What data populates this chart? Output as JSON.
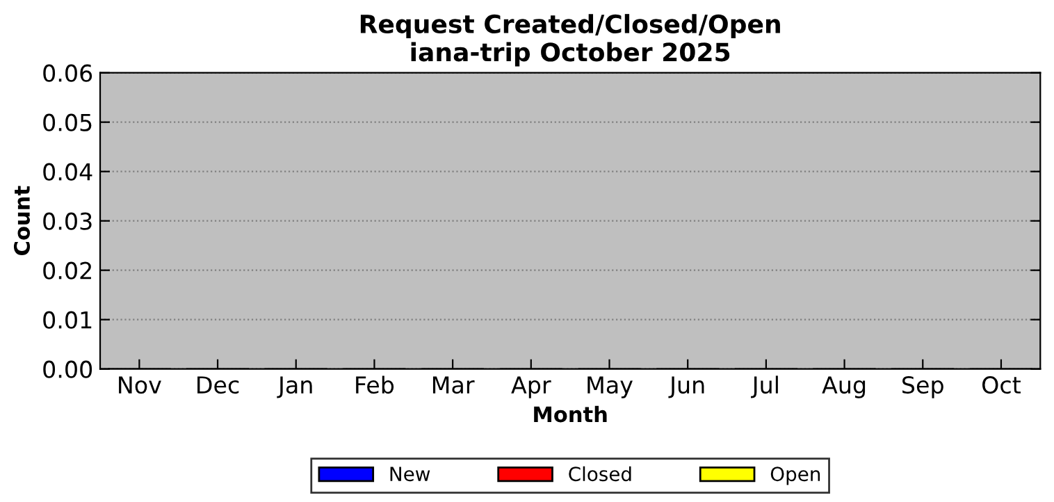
{
  "chart_data": {
    "type": "bar",
    "title": "Request Created/Closed/Open\niana-trip October 2025",
    "xlabel": "Month",
    "ylabel": "Count",
    "categories": [
      "Nov",
      "Dec",
      "Jan",
      "Feb",
      "Mar",
      "Apr",
      "May",
      "Jun",
      "Jul",
      "Aug",
      "Sep",
      "Oct"
    ],
    "series": [
      {
        "name": "New",
        "color": "#0000ff",
        "values": [
          0,
          0,
          0,
          0,
          0,
          0,
          0,
          0,
          0,
          0,
          0,
          0
        ]
      },
      {
        "name": "Closed",
        "color": "#ff0000",
        "values": [
          0,
          0,
          0,
          0,
          0,
          0,
          0,
          0,
          0,
          0,
          0,
          0
        ]
      },
      {
        "name": "Open",
        "color": "#ffff00",
        "values": [
          0,
          0,
          0,
          0,
          0,
          0,
          0,
          0,
          0,
          0,
          0,
          0
        ]
      }
    ],
    "ylim": [
      0,
      0.06
    ],
    "yticks": [
      {
        "value": 0,
        "label": "0.00"
      },
      {
        "value": 0.01,
        "label": "0.01"
      },
      {
        "value": 0.02,
        "label": "0.02"
      },
      {
        "value": 0.03,
        "label": "0.03"
      },
      {
        "value": 0.04,
        "label": "0.04"
      },
      {
        "value": 0.05,
        "label": "0.05"
      },
      {
        "value": 0.06,
        "label": "0.06"
      }
    ],
    "grid": "y",
    "legend": "bottom"
  }
}
